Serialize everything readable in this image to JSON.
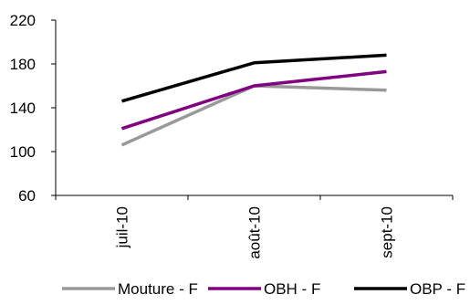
{
  "chart_data": {
    "type": "line",
    "categories": [
      "juil-10",
      "août-10",
      "sept-10"
    ],
    "y_ticks": [
      60,
      100,
      140,
      180,
      220
    ],
    "ylim": [
      60,
      220
    ],
    "grid": false,
    "legend_position": "bottom",
    "series": [
      {
        "name": "Mouture - F",
        "values": [
          106,
          160,
          156
        ],
        "color": "#999999"
      },
      {
        "name": "OBH - F",
        "values": [
          121,
          160,
          173
        ],
        "color": "#800080"
      },
      {
        "name": "OBP - F",
        "values": [
          146,
          181,
          188
        ],
        "color": "#000000"
      }
    ]
  }
}
